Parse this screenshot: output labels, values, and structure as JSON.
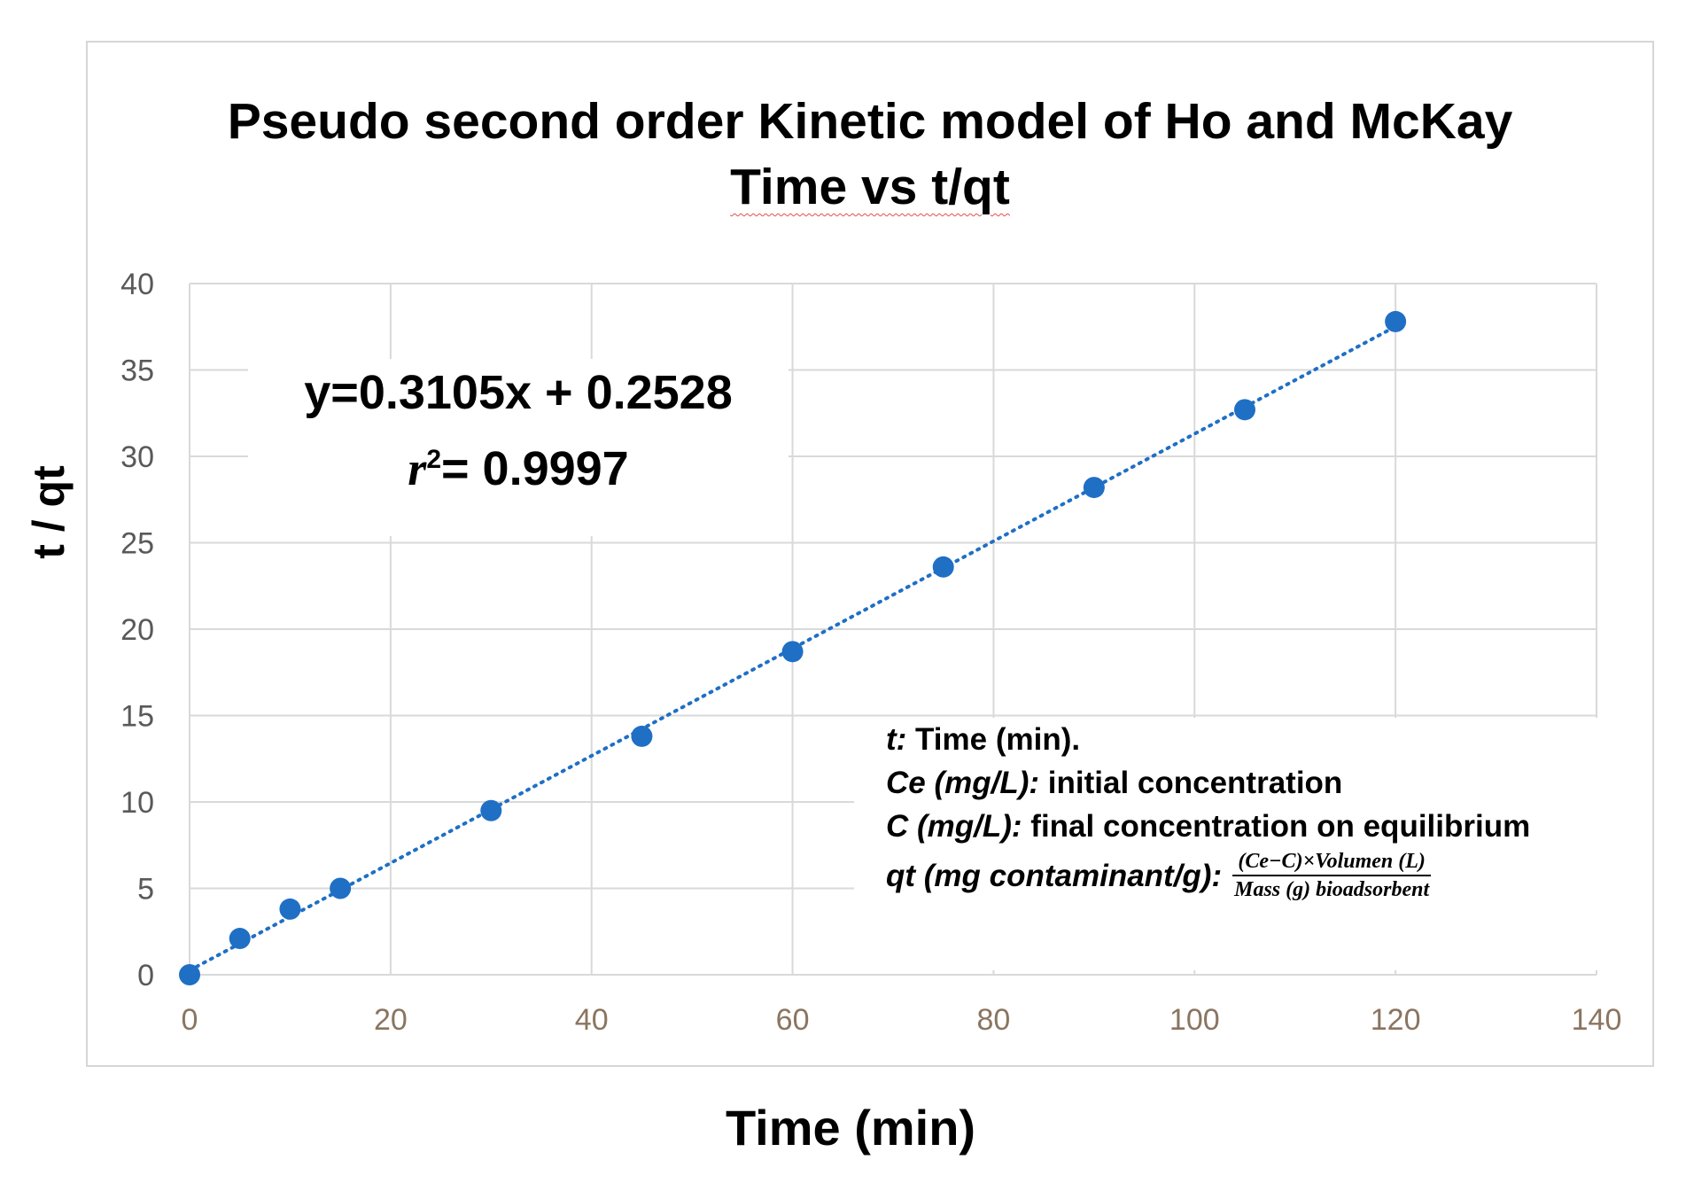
{
  "chart_data": {
    "type": "scatter",
    "title": [
      "Pseudo second order Kinetic model of Ho and McKay",
      "Time vs t/qt"
    ],
    "xlabel": "Time (min)",
    "ylabel": "t / qt",
    "xlim": [
      0,
      140
    ],
    "ylim": [
      0,
      40
    ],
    "xticks": [
      0,
      20,
      40,
      60,
      80,
      100,
      120,
      140
    ],
    "yticks": [
      0,
      5,
      10,
      15,
      20,
      25,
      30,
      35,
      40
    ],
    "grid": true,
    "x": [
      0,
      5,
      10,
      15,
      30,
      45,
      60,
      75,
      90,
      105,
      120
    ],
    "y": [
      0,
      2.1,
      3.8,
      5.0,
      9.5,
      13.8,
      18.7,
      23.6,
      28.2,
      32.7,
      37.8
    ],
    "trendline": {
      "type": "linear",
      "slope": 0.3105,
      "intercept": 0.2528,
      "style": "dotted"
    },
    "colors": {
      "series": "#1f6fc5",
      "grid": "#d9d9d9"
    },
    "annotations": {
      "equation": "y=0.3105x + 0.2528",
      "r2_symbol": "r",
      "r2_exp": "2",
      "r2_value": "= 0.9997"
    }
  },
  "legend_notes": [
    {
      "term": "t:",
      "desc": " Time (min)."
    },
    {
      "term": "Ce (mg/L):",
      "desc": " initial concentration"
    },
    {
      "term": "C (mg/L):",
      "desc": " final concentration on equilibrium"
    },
    {
      "term": "qt (mg contaminant/g):",
      "desc": ""
    }
  ],
  "qt_formula": {
    "numerator": "(Ce−C)×Volumen (L)",
    "denominator": "Mass (g) bioadsorbent"
  }
}
